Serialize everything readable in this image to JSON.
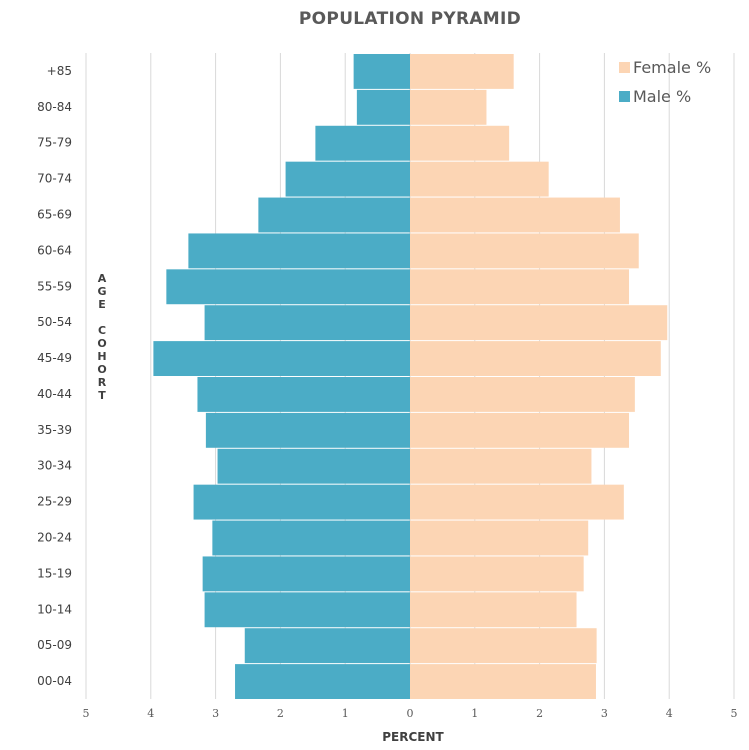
{
  "chart_data": {
    "type": "bar",
    "orientation": "horizontal",
    "title": "POPULATION PYRAMID",
    "xlabel": "PERCENT",
    "ylabel": "AGE COHORT",
    "categories": [
      "00-04",
      "05-09",
      "10-14",
      "15-19",
      "20-24",
      "25-29",
      "30-34",
      "35-39",
      "40-44",
      "45-49",
      "50-54",
      "55-59",
      "60-64",
      "65-69",
      "70-74",
      "75-79",
      "80-84",
      "+85"
    ],
    "series": [
      {
        "name": "Male %",
        "color": "#4bacc6",
        "side": "left",
        "values": [
          2.7,
          2.55,
          3.17,
          3.2,
          3.05,
          3.34,
          2.97,
          3.15,
          3.28,
          3.96,
          3.17,
          3.76,
          3.42,
          2.34,
          1.92,
          1.46,
          0.82,
          0.87
        ]
      },
      {
        "name": "Female %",
        "color": "#fcd5b4",
        "side": "right",
        "values": [
          2.87,
          2.88,
          2.57,
          2.68,
          2.75,
          3.3,
          2.8,
          3.38,
          3.47,
          3.87,
          3.97,
          3.38,
          3.53,
          3.24,
          2.14,
          1.53,
          1.18,
          1.6
        ]
      }
    ],
    "xlim": [
      -5,
      5
    ],
    "xticks": [
      "5",
      "4",
      "3",
      "2",
      "1",
      "0",
      "1",
      "2",
      "3",
      "4",
      "5"
    ],
    "grid": true,
    "legend_position": "top-right"
  }
}
